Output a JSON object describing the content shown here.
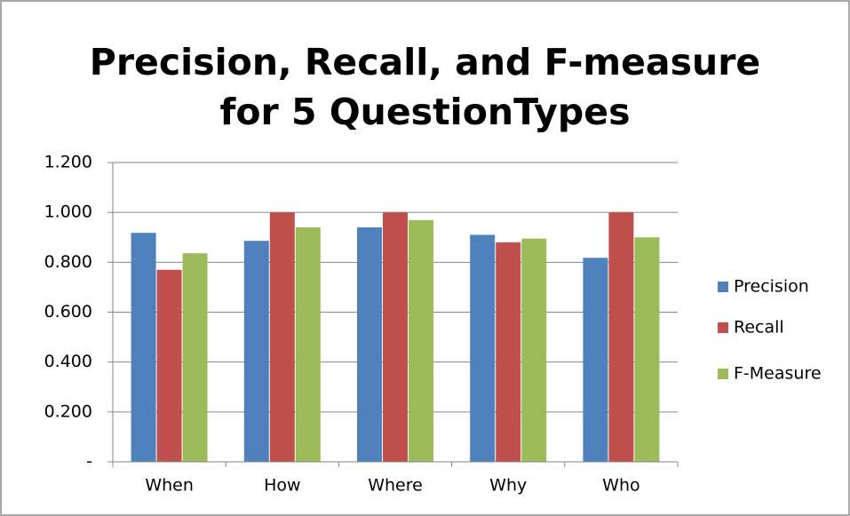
{
  "chart_data": {
    "type": "bar",
    "title": "Precision, Recall, and F-measure for 5 QuestionTypes",
    "categories": [
      "When",
      "How",
      "Where",
      "Why",
      "Who"
    ],
    "series": [
      {
        "name": "Precision",
        "color": "#4f81bd",
        "values": [
          0.918,
          0.886,
          0.94,
          0.91,
          0.818
        ]
      },
      {
        "name": "Recall",
        "color": "#c0504d",
        "values": [
          0.77,
          1.0,
          1.0,
          0.88,
          1.0
        ]
      },
      {
        "name": "F-Measure",
        "color": "#9bbb59",
        "values": [
          0.836,
          0.94,
          0.969,
          0.895,
          0.9
        ]
      }
    ],
    "ylim": [
      0,
      1.2
    ],
    "yticks": [
      {
        "value": 0,
        "label": "-"
      },
      {
        "value": 0.2,
        "label": "0.200"
      },
      {
        "value": 0.4,
        "label": "0.400"
      },
      {
        "value": 0.6,
        "label": "0.600"
      },
      {
        "value": 0.8,
        "label": "0.800"
      },
      {
        "value": 1.0,
        "label": "1.000"
      },
      {
        "value": 1.2,
        "label": "1.200"
      }
    ],
    "grid": true,
    "legend": "right"
  }
}
